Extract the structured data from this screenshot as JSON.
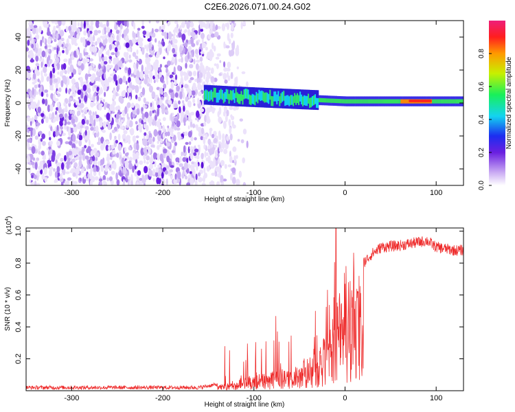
{
  "title": "C2E6.2026.071.00.24.G02",
  "colors": {
    "snr_line": "#ee2b2b",
    "spectrum_low": "#d9c8f5",
    "spectrum_mid": "#6a1fe0",
    "axis": "#000000"
  },
  "chart_data": [
    {
      "type": "heatmap",
      "name": "spectrogram",
      "xlabel": "Height of straight line (km)",
      "ylabel": "Frequency (Hz)",
      "xlim": [
        -350,
        130
      ],
      "ylim": [
        -50,
        50
      ],
      "x_ticks": [
        -300,
        -200,
        -100,
        0,
        100
      ],
      "x_tick_labels": [
        "-300",
        "-200",
        "-100",
        "0",
        "100"
      ],
      "y_ticks": [
        -40,
        -20,
        0,
        20,
        40
      ],
      "y_tick_labels": [
        "-40",
        "-20",
        "0",
        "20",
        "40"
      ],
      "noise_region_km": [
        -350,
        -130
      ],
      "signal_onset_km": -155,
      "signal_band_center_hz": [
        {
          "x": -155,
          "f": 5
        },
        {
          "x": -120,
          "f": 4
        },
        {
          "x": -80,
          "f": 3
        },
        {
          "x": -40,
          "f": 2
        },
        {
          "x": 0,
          "f": 1
        },
        {
          "x": 60,
          "f": 1
        },
        {
          "x": 100,
          "f": 1
        },
        {
          "x": 130,
          "f": 1
        }
      ],
      "colorbar": {
        "label": "Normalized spectral amplitude",
        "range": [
          0,
          1
        ],
        "ticks": [
          0.0,
          0.2,
          0.4,
          0.6,
          0.8
        ],
        "tick_labels": [
          "0.0",
          "0.2",
          "0.4",
          "0.6",
          "0.8"
        ]
      }
    },
    {
      "type": "line",
      "name": "snr",
      "xlabel": "Height of straight line (km)",
      "ylabel": "SNR (10 * v/v)",
      "scale_label": "(x10",
      "scale_exp": "4",
      "scale_close": ")",
      "xlim": [
        -350,
        130
      ],
      "ylim": [
        0,
        1.02
      ],
      "x_ticks": [
        -300,
        -200,
        -100,
        0,
        100
      ],
      "x_tick_labels": [
        "-300",
        "-200",
        "-100",
        "0",
        "100"
      ],
      "y_ticks": [
        0.2,
        0.4,
        0.6,
        0.8,
        1.0
      ],
      "y_tick_labels": [
        "0.2",
        "0.4",
        "0.6",
        "0.8",
        "1.0"
      ],
      "series": [
        {
          "name": "SNR",
          "x": [
            -350,
            -300,
            -250,
            -200,
            -160,
            -130,
            -115,
            -100,
            -80,
            -60,
            -40,
            -25,
            -20,
            -15,
            -10,
            -5,
            0,
            5,
            10,
            20,
            30,
            40,
            60,
            80,
            90,
            100,
            110,
            120,
            130
          ],
          "y": [
            0.02,
            0.02,
            0.02,
            0.02,
            0.02,
            0.05,
            0.08,
            0.1,
            0.12,
            0.15,
            0.22,
            0.3,
            0.4,
            0.45,
            0.55,
            0.62,
            0.68,
            0.7,
            0.75,
            0.8,
            0.86,
            0.9,
            0.91,
            0.93,
            0.94,
            0.9,
            0.89,
            0.88,
            0.88
          ]
        }
      ]
    }
  ]
}
